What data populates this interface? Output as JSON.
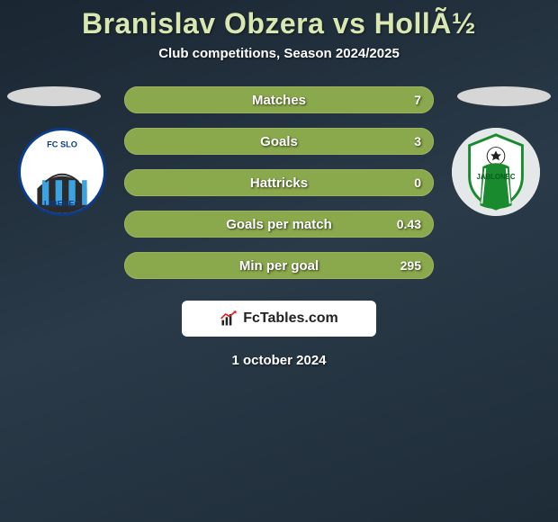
{
  "title": "Branislav Obzera vs HollÃ½",
  "subtitle": "Club competitions, Season 2024/2025",
  "footer_date": "1 october 2024",
  "brand": {
    "text": "FcTables.com"
  },
  "colors": {
    "title": "#d8e8b0",
    "row_fill": "#8aa84c",
    "row_border": "#9db060",
    "text": "#ffffff",
    "bg_grad_from": "#1a2632",
    "bg_grad_mid": "#2a3a48",
    "bg_grad_to": "#1e2c38"
  },
  "badges": {
    "left": {
      "name": "FC Slovan Liberec",
      "ring_color": "#0b3b8a",
      "stripes_color": "#3aa3e0",
      "text_top": "FC SLO",
      "text_bottom": "LIBEREC"
    },
    "right": {
      "name": "FK Baumit Jablonec",
      "accent_color": "#1a8a2e",
      "text_mid": "JABLONEC"
    }
  },
  "stats": [
    {
      "label": "Matches",
      "value": "7",
      "fill_pct": 100
    },
    {
      "label": "Goals",
      "value": "3",
      "fill_pct": 100
    },
    {
      "label": "Hattricks",
      "value": "0",
      "fill_pct": 100
    },
    {
      "label": "Goals per match",
      "value": "0.43",
      "fill_pct": 100
    },
    {
      "label": "Min per goal",
      "value": "295",
      "fill_pct": 100
    }
  ]
}
